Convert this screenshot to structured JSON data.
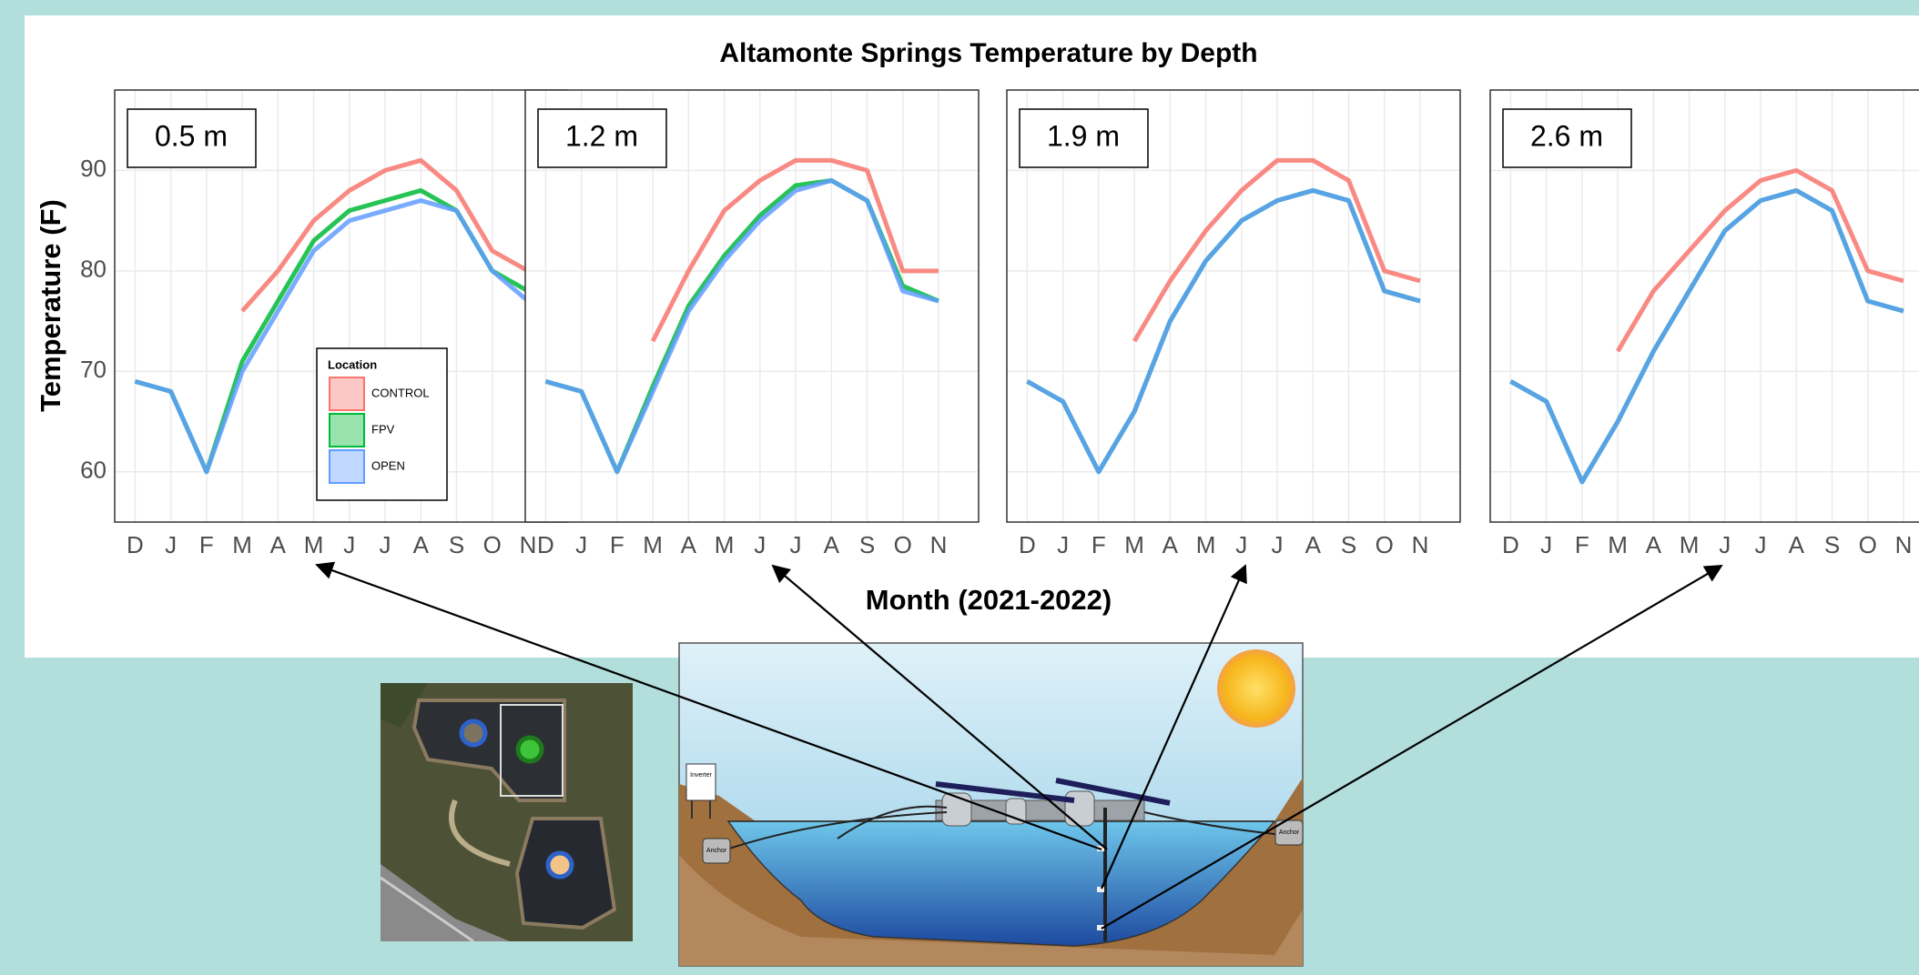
{
  "figure": {
    "title": "Altamonte Springs Temperature by Depth",
    "x_label": "Month (2021-2022)",
    "y_label": "Temperature (F)"
  },
  "legend": {
    "title": "Location",
    "entries": [
      {
        "name": "CONTROL",
        "color": "#f8766d"
      },
      {
        "name": "FPV",
        "color": "#00ba38"
      },
      {
        "name": "OPEN",
        "color": "#619cff"
      }
    ]
  },
  "chart_data": [
    {
      "type": "line",
      "label": "0.5 m",
      "categories": [
        "D",
        "J",
        "F",
        "M",
        "A",
        "M",
        "J",
        "J",
        "A",
        "S",
        "O",
        "N"
      ],
      "ylim": [
        55,
        98
      ],
      "yticks": [
        60,
        70,
        80,
        90
      ],
      "grid": true,
      "series": [
        {
          "values": [
            null,
            null,
            null,
            76,
            80,
            85,
            88,
            90,
            91,
            88,
            82,
            80
          ]
        },
        {
          "values": [
            69,
            68,
            60,
            71,
            77,
            83,
            86,
            87,
            88,
            86,
            80,
            78
          ]
        },
        {
          "values": [
            69,
            68,
            60,
            70,
            76,
            82,
            85,
            86,
            87,
            86,
            80,
            77
          ]
        }
      ]
    },
    {
      "type": "line",
      "label": "1.2 m",
      "categories": [
        "D",
        "J",
        "F",
        "M",
        "A",
        "M",
        "J",
        "J",
        "A",
        "S",
        "O",
        "N"
      ],
      "ylim": [
        55,
        98
      ],
      "yticks": [
        60,
        70,
        80,
        90
      ],
      "grid": true,
      "series": [
        {
          "values": [
            null,
            null,
            null,
            73,
            80,
            86,
            89,
            91,
            91,
            90,
            80,
            80
          ]
        },
        {
          "values": [
            69,
            68,
            60,
            68.5,
            76.5,
            81.5,
            85.5,
            88.5,
            89,
            87,
            78.5,
            77
          ]
        },
        {
          "values": [
            69,
            68,
            60,
            68,
            76,
            81,
            85,
            88,
            89,
            87,
            78,
            77
          ]
        }
      ]
    },
    {
      "type": "line",
      "label": "1.9 m",
      "categories": [
        "D",
        "J",
        "F",
        "M",
        "A",
        "M",
        "J",
        "J",
        "A",
        "S",
        "O",
        "N"
      ],
      "ylim": [
        55,
        98
      ],
      "yticks": [
        60,
        70,
        80,
        90
      ],
      "grid": true,
      "series": [
        {
          "values": [
            null,
            null,
            null,
            73,
            79,
            84,
            88,
            91,
            91,
            89,
            80,
            79
          ]
        },
        {
          "values": [
            69,
            67,
            60,
            66,
            75,
            81,
            85,
            87,
            88,
            87,
            78,
            77
          ]
        },
        {
          "values": [
            69,
            67,
            60,
            66,
            75,
            81,
            85,
            87,
            88,
            87,
            78,
            77
          ]
        }
      ]
    },
    {
      "type": "line",
      "label": "2.6 m",
      "categories": [
        "D",
        "J",
        "F",
        "M",
        "A",
        "M",
        "J",
        "J",
        "A",
        "S",
        "O",
        "N"
      ],
      "ylim": [
        55,
        98
      ],
      "yticks": [
        60,
        70,
        80,
        90
      ],
      "grid": true,
      "series": [
        {
          "values": [
            null,
            null,
            null,
            72,
            78,
            82,
            86,
            89,
            90,
            88,
            80,
            79
          ]
        },
        {
          "values": [
            69,
            67,
            59,
            65,
            72,
            78,
            84,
            87,
            88,
            86,
            77,
            76
          ]
        },
        {
          "values": [
            69,
            67,
            59,
            65,
            72,
            78,
            84,
            87,
            88,
            86,
            77,
            76
          ]
        }
      ]
    }
  ],
  "diagram": {
    "inverter": "Inverter",
    "anchor_left": "Anchor",
    "anchor_right": "Anchor"
  }
}
